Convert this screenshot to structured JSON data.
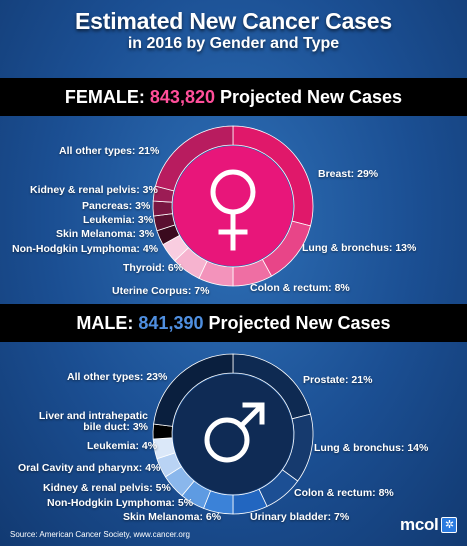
{
  "header": {
    "title": "Estimated New Cancer Cases",
    "subtitle": "in 2016 by Gender and Type"
  },
  "female": {
    "band_prefix": "FEMALE:",
    "count": "843,820",
    "band_suffix": "Projected New Cases"
  },
  "male": {
    "band_prefix": "MALE:",
    "count": "841,390",
    "band_suffix": "Projected New Cases"
  },
  "colors": {
    "female_accent": "#ff4f9a",
    "male_accent": "#4f8fe0"
  },
  "chart_data": [
    {
      "type": "pie",
      "name": "female",
      "symbol": "female-symbol",
      "categories": [
        "Breast",
        "Lung & bronchus",
        "Colon & rectum",
        "Uterine Corpus",
        "Thyroid",
        "Non-Hodgkin Lymphoma",
        "Skin Melanoma",
        "Leukemia",
        "Pancreas",
        "Kidney & renal pelvis",
        "All other types"
      ],
      "values": [
        29,
        13,
        8,
        7,
        6,
        4,
        3,
        3,
        3,
        3,
        21
      ],
      "labels": [
        "Breast: 29%",
        "Lung & bronchus: 13%",
        "Colon & rectum: 8%",
        "Uterine Corpus: 7%",
        "Thyroid: 6%",
        "Non-Hodgkin Lymphoma: 4%",
        "Skin Melanoma: 3%",
        "Leukemia: 3%",
        "Pancreas: 3%",
        "Kidney & renal pelvis: 3%",
        "All other types: 21%"
      ],
      "colors": [
        "#e0186a",
        "#e84588",
        "#ef6ea3",
        "#f393bb",
        "#f6b3cf",
        "#f9cde0",
        "#3a0a1e",
        "#5a1030",
        "#7a1642",
        "#9c1c55",
        "#b81c5f"
      ]
    },
    {
      "type": "pie",
      "name": "male",
      "symbol": "male-symbol",
      "categories": [
        "Prostate",
        "Lung & bronchus",
        "Colon & rectum",
        "Urinary bladder",
        "Skin Melanoma",
        "Non-Hodgkin Lymphoma",
        "Kidney & renal pelvis",
        "Oral Cavity and pharynx",
        "Leukemia",
        "Liver and intrahepatic bile duct",
        "All other types"
      ],
      "values": [
        21,
        14,
        8,
        7,
        6,
        5,
        5,
        4,
        4,
        3,
        23
      ],
      "labels": [
        "Prostate: 21%",
        "Lung & bronchus: 14%",
        "Colon & rectum: 8%",
        "Urinary bladder: 7%",
        "Skin Melanoma: 6%",
        "Non-Hodgkin Lymphoma: 5%",
        "Kidney & renal pelvis: 5%",
        "Oral Cavity and pharynx: 4%",
        "Leukemia: 4%",
        "Liver and intrahepatic bile duct: 3%",
        "All other types: 23%"
      ],
      "colors": [
        "#0e2a52",
        "#163a6e",
        "#1c4f94",
        "#2266c0",
        "#3b82d8",
        "#5e9be2",
        "#8ab7ec",
        "#b9d3f4",
        "#dbe8f9",
        "#000000",
        "#0a1f3e"
      ]
    }
  ],
  "footer": {
    "source": "Source:  American Cancer Society, www.cancer.org",
    "logo_text": "mcol",
    "logo_mark": "✲"
  }
}
